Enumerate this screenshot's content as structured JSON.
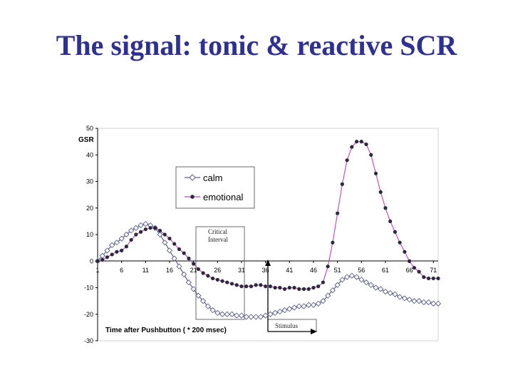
{
  "slide": {
    "title": "The signal: tonic & reactive SCR"
  },
  "chart_data": {
    "type": "line",
    "ylabel": "GSR",
    "xlabel": "Time after Pushbutton ( * 200 msec)",
    "ylim": [
      -30,
      50
    ],
    "yticks": [
      -30,
      -20,
      -10,
      0,
      10,
      20,
      30,
      40,
      50
    ],
    "xlim": [
      1,
      72
    ],
    "xticks": [
      "1",
      "6",
      "11",
      "16",
      "21",
      "26",
      "31",
      "36",
      "41",
      "46",
      "51",
      "56",
      "61",
      "66",
      "71"
    ],
    "grid": false,
    "legend_position": "top-left",
    "annotations": {
      "critical_interval": "Critical Interval",
      "stimulus": "Stimulus"
    },
    "series": [
      {
        "name": "calm",
        "color": "#5a5f8c",
        "marker": "diamond",
        "x": [
          1,
          2,
          3,
          4,
          5,
          6,
          7,
          8,
          9,
          10,
          11,
          12,
          13,
          14,
          15,
          16,
          17,
          18,
          19,
          20,
          21,
          22,
          23,
          24,
          25,
          26,
          27,
          28,
          29,
          30,
          31,
          32,
          33,
          34,
          35,
          36,
          37,
          38,
          39,
          40,
          41,
          42,
          43,
          44,
          45,
          46,
          47,
          48,
          49,
          50,
          51,
          52,
          53,
          54,
          55,
          56,
          57,
          58,
          59,
          60,
          61,
          62,
          63,
          64,
          65,
          66,
          67,
          68,
          69,
          70,
          71,
          72
        ],
        "y": [
          0,
          2,
          4,
          6,
          7,
          8.5,
          10,
          11.5,
          12.5,
          13.5,
          14,
          13.5,
          12.5,
          10,
          7,
          4,
          1,
          -2,
          -5,
          -8,
          -10.5,
          -13,
          -15,
          -17,
          -18.5,
          -19.5,
          -20,
          -20,
          -20,
          -20.5,
          -20.5,
          -21,
          -21,
          -21,
          -21,
          -20.5,
          -20,
          -19.5,
          -19,
          -18.5,
          -18,
          -17.5,
          -17,
          -17,
          -16.5,
          -16.5,
          -16,
          -15,
          -13,
          -11,
          -9,
          -7,
          -6,
          -5.5,
          -6,
          -7,
          -8,
          -9,
          -10,
          -10.5,
          -11.5,
          -12,
          -12.5,
          -13.5,
          -14,
          -14.5,
          -15,
          -15,
          -15.5,
          -15.5,
          -16,
          -16
        ]
      },
      {
        "name": "emotional",
        "color": "#c94fc4",
        "marker": "dot",
        "x": [
          1,
          2,
          3,
          4,
          5,
          6,
          7,
          8,
          9,
          10,
          11,
          12,
          13,
          14,
          15,
          16,
          17,
          18,
          19,
          20,
          21,
          22,
          23,
          24,
          25,
          26,
          27,
          28,
          29,
          30,
          31,
          32,
          33,
          34,
          35,
          36,
          37,
          38,
          39,
          40,
          41,
          42,
          43,
          44,
          45,
          46,
          47,
          48,
          49,
          50,
          51,
          52,
          53,
          54,
          55,
          56,
          57,
          58,
          59,
          60,
          61,
          62,
          63,
          64,
          65,
          66,
          67,
          68,
          69,
          70,
          71,
          72
        ],
        "y": [
          0,
          0.5,
          1.5,
          2.5,
          3.5,
          4,
          5.5,
          8,
          10,
          11,
          12,
          12.5,
          12.5,
          11.5,
          10,
          8.5,
          6.5,
          4.5,
          3,
          1,
          -1,
          -3,
          -4.5,
          -5.5,
          -6.5,
          -7,
          -7.5,
          -8,
          -8.5,
          -9,
          -9.5,
          -9.5,
          -9.5,
          -9,
          -9,
          -9.5,
          -9.5,
          -10,
          -10,
          -10.5,
          -10,
          -10,
          -10.5,
          -10.5,
          -10.5,
          -10,
          -9.5,
          -8,
          -2,
          7,
          18,
          29,
          38,
          43,
          45,
          45,
          44,
          40,
          33,
          26,
          20,
          15,
          11,
          7,
          3.5,
          0,
          -2.5,
          -4,
          -6,
          -6.5,
          -6.5,
          -6.5
        ]
      }
    ]
  }
}
